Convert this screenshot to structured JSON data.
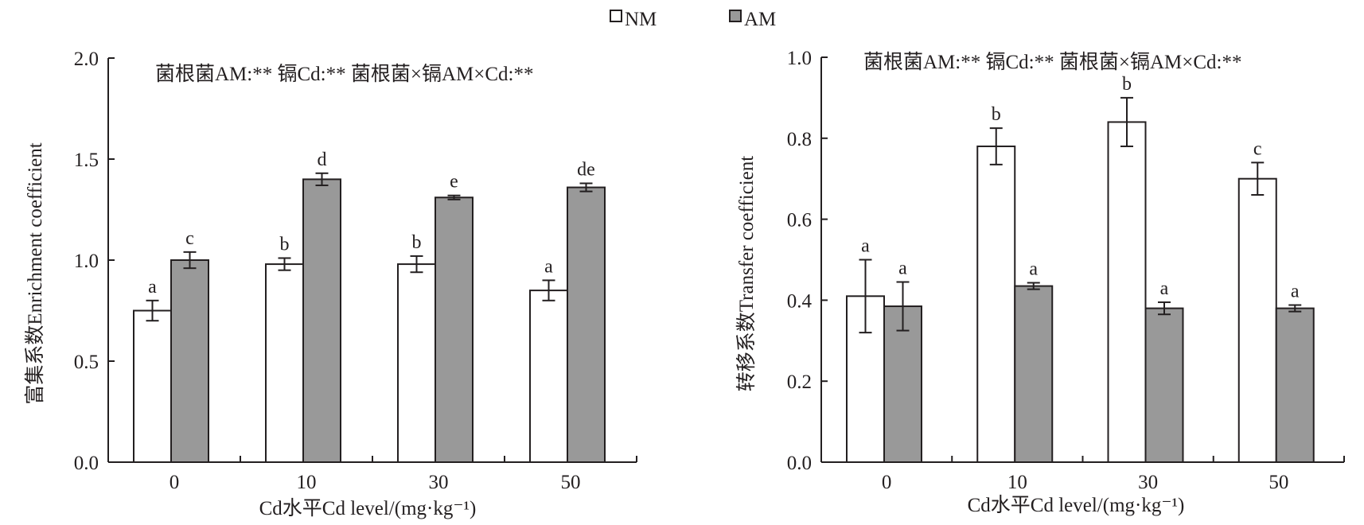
{
  "legend": {
    "items": [
      {
        "name": "NM",
        "color": "#ffffff"
      },
      {
        "name": "AM",
        "color": "#999999"
      }
    ]
  },
  "colors": {
    "axis": "#231f20",
    "nm_fill": "#ffffff",
    "am_fill": "#999999"
  },
  "chart_data": [
    {
      "type": "bar",
      "title": "",
      "annotation": "菌根菌AM:**  镉Cd:**  菌根菌×镉AM×Cd:**",
      "xlabel": "Cd水平Cd level/(mg·kg⁻¹)",
      "ylabel": "富集系数Enrichment coefficient",
      "categories": [
        "0",
        "10",
        "30",
        "50"
      ],
      "ylim": [
        0,
        2.0
      ],
      "yticks": [
        "0.0",
        "0.5",
        "1.0",
        "1.5",
        "2.0"
      ],
      "series": [
        {
          "name": "NM",
          "values": [
            0.75,
            0.98,
            0.98,
            0.85
          ],
          "errors": [
            0.05,
            0.03,
            0.04,
            0.05
          ],
          "letters": [
            "a",
            "b",
            "b",
            "a"
          ]
        },
        {
          "name": "AM",
          "values": [
            1.0,
            1.4,
            1.31,
            1.36
          ],
          "errors": [
            0.04,
            0.03,
            0.01,
            0.02
          ],
          "letters": [
            "c",
            "d",
            "e",
            "de"
          ]
        }
      ]
    },
    {
      "type": "bar",
      "title": "",
      "annotation": "菌根菌AM:**  镉Cd:**  菌根菌×镉AM×Cd:**",
      "xlabel": "Cd水平Cd level/(mg·kg⁻¹)",
      "ylabel": "转移系数Transfer coefficient",
      "categories": [
        "0",
        "10",
        "30",
        "50"
      ],
      "ylim": [
        0,
        1.0
      ],
      "yticks": [
        "0.0",
        "0.2",
        "0.4",
        "0.6",
        "0.8",
        "1.0"
      ],
      "series": [
        {
          "name": "NM",
          "values": [
            0.41,
            0.78,
            0.84,
            0.7
          ],
          "errors": [
            0.09,
            0.045,
            0.06,
            0.04
          ],
          "letters": [
            "a",
            "b",
            "b",
            "c"
          ]
        },
        {
          "name": "AM",
          "values": [
            0.385,
            0.435,
            0.38,
            0.38
          ],
          "errors": [
            0.06,
            0.008,
            0.015,
            0.008
          ],
          "letters": [
            "a",
            "a",
            "a",
            "a"
          ]
        }
      ]
    }
  ]
}
